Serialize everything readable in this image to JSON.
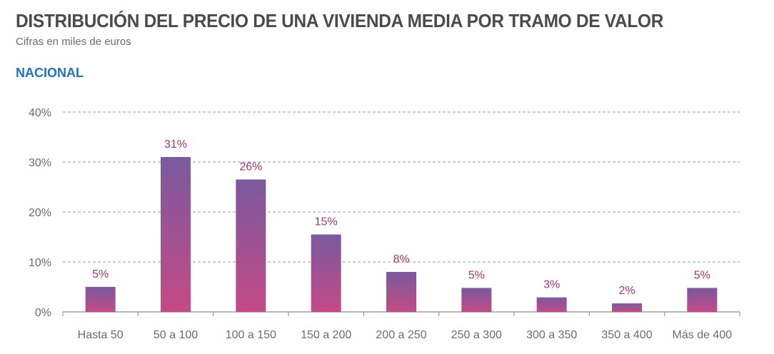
{
  "title": "DISTRIBUCIÓN DEL PRECIO DE UNA VIVIENDA MEDIA POR TRAMO DE VALOR",
  "subtitle": "Cifras en miles de euros",
  "section": "NACIONAL",
  "colors": {
    "bar_top": "#7a5a9e",
    "bar_bottom": "#c44a86",
    "label": "#a8336e",
    "grid": "#9a9a9a"
  },
  "chart_data": {
    "type": "bar",
    "categories": [
      "Hasta 50",
      "50 a 100",
      "100 a 150",
      "150 a 200",
      "200 a 250",
      "250 a 300",
      "300 a 350",
      "350 a 400",
      "Más de 400"
    ],
    "values": [
      5,
      31,
      26.5,
      15.5,
      8,
      4.8,
      2.9,
      1.7,
      4.8
    ],
    "data_labels": [
      "5%",
      "31%",
      "26%",
      "15%",
      "8%",
      "5%",
      "3%",
      "2%",
      "5%"
    ],
    "yticks": [
      "0%",
      "10%",
      "20%",
      "30%",
      "40%"
    ],
    "ylim": [
      0,
      40
    ],
    "grid": true
  }
}
